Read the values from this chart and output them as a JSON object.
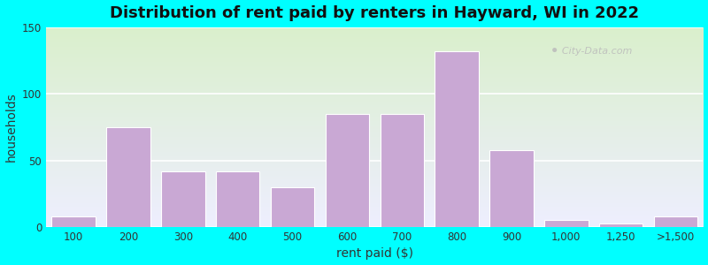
{
  "title": "Distribution of rent paid by renters in Hayward, WI in 2022",
  "xlabel": "rent paid ($)",
  "ylabel": "households",
  "bar_color": "#C9A8D4",
  "bar_edge_color": "#FFFFFF",
  "categories": [
    "100",
    "200",
    "300",
    "400",
    "500",
    "600",
    "700",
    "800",
    "900",
    "1,000",
    "1,250",
    ">1,500"
  ],
  "values": [
    8,
    75,
    42,
    42,
    30,
    85,
    85,
    132,
    58,
    5,
    3,
    8
  ],
  "ylim": [
    0,
    150
  ],
  "yticks": [
    0,
    50,
    100,
    150
  ],
  "bg_top": "#daf0cc",
  "bg_bottom": "#eeeeff",
  "outer_bg": "#00FFFF",
  "title_fontsize": 13,
  "axis_label_fontsize": 10,
  "tick_fontsize": 8.5
}
